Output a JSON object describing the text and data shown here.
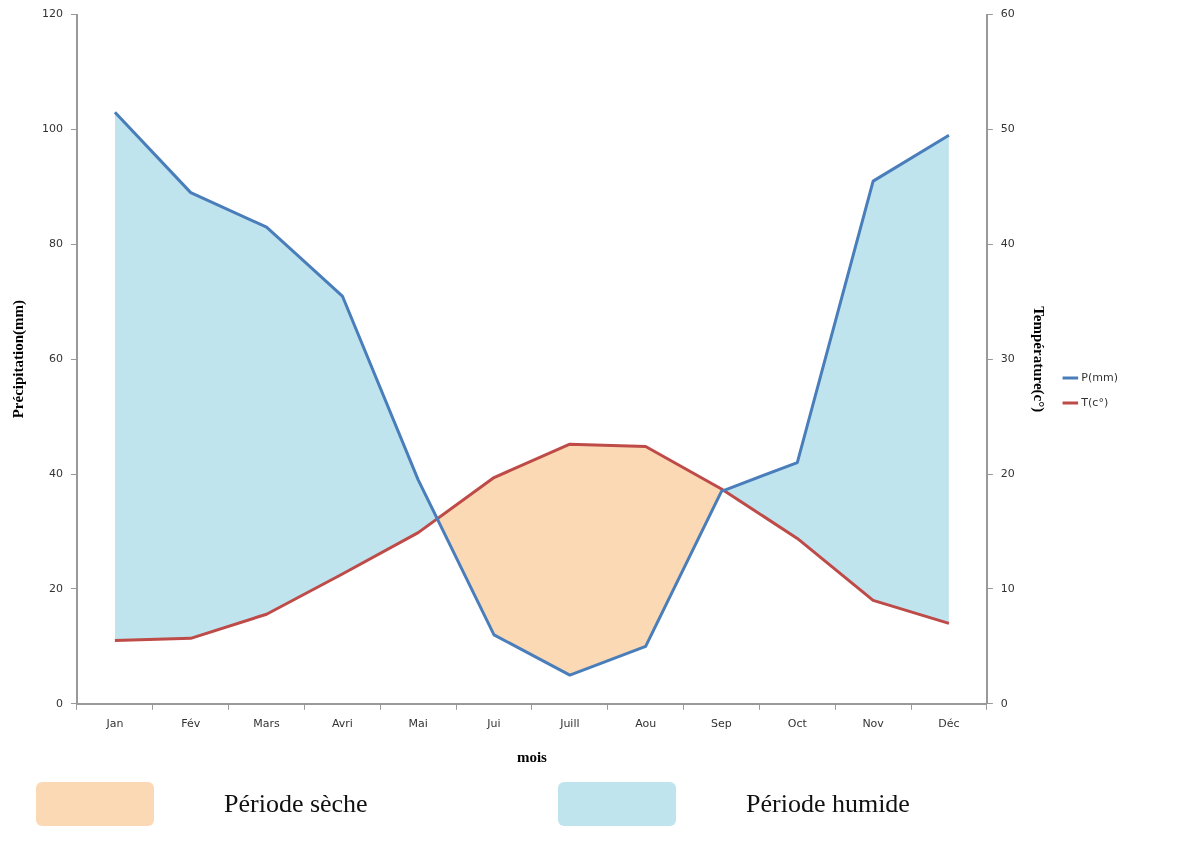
{
  "chart_data": {
    "type": "line",
    "xlabel": "mois",
    "ylabel": "Précipitation(mm)",
    "y2label": "Température(c°)",
    "categories": [
      "Jan",
      "Fév",
      "Mars",
      "Avri",
      "Mai",
      "Jui",
      "Juill",
      "Aou",
      "Sep",
      "Oct",
      "Nov",
      "Déc"
    ],
    "series": [
      {
        "name": "P(mm)",
        "color": "#4a7ebb",
        "values": [
          103,
          89,
          83,
          71,
          39,
          12,
          5,
          10,
          37,
          42,
          91,
          99
        ]
      },
      {
        "name": "T(c°)",
        "color": "#be4b48",
        "axis": "y2",
        "values": [
          5.5,
          5.7,
          7.8,
          11.3,
          14.9,
          19.7,
          22.6,
          22.4,
          18.7,
          14.4,
          9,
          7
        ]
      }
    ],
    "annotations": [
      "Période sèche",
      "Période humide"
    ],
    "ylim": [
      0,
      120
    ],
    "yticks": [
      0,
      20,
      40,
      60,
      80,
      100,
      120
    ],
    "y2lim": [
      0,
      60
    ],
    "y2ticks": [
      0,
      10,
      20,
      30,
      40,
      50,
      60
    ],
    "grid": false,
    "legend": "right",
    "marker": "none",
    "line_style": "solid"
  }
}
